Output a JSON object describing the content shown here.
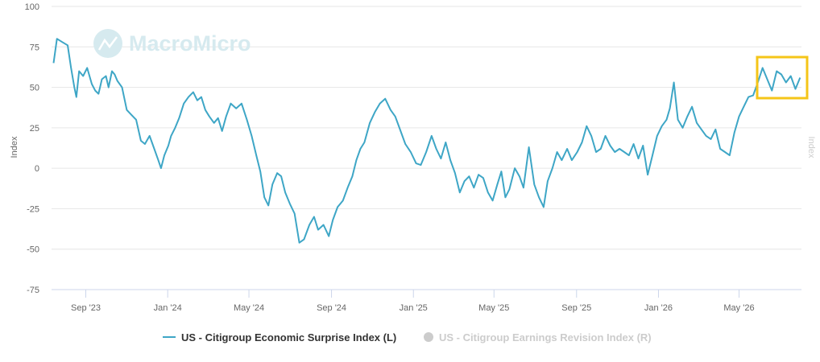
{
  "chart_data": {
    "type": "line",
    "watermark": "MacroMicro",
    "y_axis_left": {
      "label": "Index",
      "ticks": [
        100,
        75,
        50,
        25,
        0,
        -25,
        -50,
        -75
      ],
      "range": [
        -75,
        100
      ]
    },
    "y_axis_right": {
      "label": "Index"
    },
    "x_axis": {
      "ticks": [
        "Sep '23",
        "Jan '24",
        "May '24",
        "Sep '24",
        "Jan '25",
        "May '25",
        "Sep '25",
        "Jan '26",
        "May '26"
      ]
    },
    "grid": true,
    "legend_position": "bottom-center",
    "highlight_box_color": "#f5c518",
    "series": [
      {
        "name": "US - Citigroup Economic Surprise Index (L)",
        "color": "#3ea6c6",
        "visible": true,
        "points": [
          [
            "2023-07-15",
            65
          ],
          [
            "2023-07-20",
            80
          ],
          [
            "2023-07-28",
            78
          ],
          [
            "2023-08-05",
            76
          ],
          [
            "2023-08-10",
            62
          ],
          [
            "2023-08-15",
            50
          ],
          [
            "2023-08-18",
            44
          ],
          [
            "2023-08-22",
            60
          ],
          [
            "2023-08-28",
            57
          ],
          [
            "2023-09-03",
            62
          ],
          [
            "2023-09-10",
            52
          ],
          [
            "2023-09-15",
            48
          ],
          [
            "2023-09-20",
            46
          ],
          [
            "2023-09-25",
            55
          ],
          [
            "2023-10-01",
            57
          ],
          [
            "2023-10-05",
            50
          ],
          [
            "2023-10-10",
            60
          ],
          [
            "2023-10-14",
            58
          ],
          [
            "2023-10-18",
            54
          ],
          [
            "2023-10-25",
            50
          ],
          [
            "2023-11-01",
            36
          ],
          [
            "2023-11-08",
            33
          ],
          [
            "2023-11-15",
            30
          ],
          [
            "2023-11-22",
            17
          ],
          [
            "2023-11-28",
            15
          ],
          [
            "2023-12-05",
            20
          ],
          [
            "2023-12-12",
            12
          ],
          [
            "2023-12-18",
            5
          ],
          [
            "2023-12-22",
            0
          ],
          [
            "2023-12-27",
            8
          ],
          [
            "2024-01-02",
            14
          ],
          [
            "2024-01-06",
            20
          ],
          [
            "2024-01-12",
            25
          ],
          [
            "2024-01-18",
            31
          ],
          [
            "2024-01-25",
            40
          ],
          [
            "2024-02-01",
            44
          ],
          [
            "2024-02-08",
            47
          ],
          [
            "2024-02-14",
            42
          ],
          [
            "2024-02-20",
            44
          ],
          [
            "2024-02-26",
            36
          ],
          [
            "2024-03-03",
            32
          ],
          [
            "2024-03-10",
            28
          ],
          [
            "2024-03-16",
            31
          ],
          [
            "2024-03-22",
            23
          ],
          [
            "2024-03-28",
            32
          ],
          [
            "2024-04-04",
            40
          ],
          [
            "2024-04-12",
            37
          ],
          [
            "2024-04-20",
            40
          ],
          [
            "2024-04-28",
            30
          ],
          [
            "2024-05-05",
            20
          ],
          [
            "2024-05-12",
            8
          ],
          [
            "2024-05-18",
            -2
          ],
          [
            "2024-05-24",
            -18
          ],
          [
            "2024-05-30",
            -23
          ],
          [
            "2024-06-05",
            -10
          ],
          [
            "2024-06-12",
            -3
          ],
          [
            "2024-06-18",
            -5
          ],
          [
            "2024-06-24",
            -15
          ],
          [
            "2024-07-01",
            -22
          ],
          [
            "2024-07-08",
            -28
          ],
          [
            "2024-07-15",
            -46
          ],
          [
            "2024-07-22",
            -44
          ],
          [
            "2024-07-30",
            -35
          ],
          [
            "2024-08-06",
            -30
          ],
          [
            "2024-08-12",
            -38
          ],
          [
            "2024-08-20",
            -35
          ],
          [
            "2024-08-28",
            -42
          ],
          [
            "2024-09-03",
            -32
          ],
          [
            "2024-09-10",
            -24
          ],
          [
            "2024-09-18",
            -20
          ],
          [
            "2024-09-25",
            -12
          ],
          [
            "2024-10-02",
            -5
          ],
          [
            "2024-10-08",
            5
          ],
          [
            "2024-10-14",
            12
          ],
          [
            "2024-10-20",
            16
          ],
          [
            "2024-10-28",
            28
          ],
          [
            "2024-11-05",
            35
          ],
          [
            "2024-11-12",
            40
          ],
          [
            "2024-11-20",
            43
          ],
          [
            "2024-11-28",
            36
          ],
          [
            "2024-12-05",
            32
          ],
          [
            "2024-12-12",
            24
          ],
          [
            "2024-12-20",
            15
          ],
          [
            "2024-12-28",
            10
          ],
          [
            "2025-01-05",
            3
          ],
          [
            "2025-01-12",
            2
          ],
          [
            "2025-01-20",
            10
          ],
          [
            "2025-01-28",
            20
          ],
          [
            "2025-02-04",
            12
          ],
          [
            "2025-02-11",
            6
          ],
          [
            "2025-02-18",
            16
          ],
          [
            "2025-02-25",
            5
          ],
          [
            "2025-03-04",
            -3
          ],
          [
            "2025-03-11",
            -15
          ],
          [
            "2025-03-18",
            -8
          ],
          [
            "2025-03-25",
            -5
          ],
          [
            "2025-04-01",
            -12
          ],
          [
            "2025-04-08",
            -4
          ],
          [
            "2025-04-15",
            -6
          ],
          [
            "2025-04-22",
            -15
          ],
          [
            "2025-04-29",
            -20
          ],
          [
            "2025-05-06",
            -10
          ],
          [
            "2025-05-12",
            -2
          ],
          [
            "2025-05-18",
            -18
          ],
          [
            "2025-05-24",
            -13
          ],
          [
            "2025-06-01",
            0
          ],
          [
            "2025-06-08",
            -5
          ],
          [
            "2025-06-14",
            -12
          ],
          [
            "2025-06-22",
            13
          ],
          [
            "2025-06-30",
            -10
          ],
          [
            "2025-07-07",
            -18
          ],
          [
            "2025-07-14",
            -24
          ],
          [
            "2025-07-20",
            -8
          ],
          [
            "2025-07-27",
            0
          ],
          [
            "2025-08-03",
            10
          ],
          [
            "2025-08-10",
            5
          ],
          [
            "2025-08-18",
            12
          ],
          [
            "2025-08-25",
            5
          ],
          [
            "2025-09-02",
            10
          ],
          [
            "2025-09-09",
            16
          ],
          [
            "2025-09-16",
            26
          ],
          [
            "2025-09-23",
            20
          ],
          [
            "2025-09-30",
            10
          ],
          [
            "2025-10-07",
            12
          ],
          [
            "2025-10-14",
            20
          ],
          [
            "2025-10-21",
            14
          ],
          [
            "2025-10-28",
            10
          ],
          [
            "2025-11-04",
            12
          ],
          [
            "2025-11-11",
            10
          ],
          [
            "2025-11-18",
            8
          ],
          [
            "2025-11-25",
            15
          ],
          [
            "2025-12-02",
            6
          ],
          [
            "2025-12-09",
            14
          ],
          [
            "2025-12-16",
            -4
          ],
          [
            "2025-12-23",
            8
          ],
          [
            "2025-12-30",
            20
          ],
          [
            "2026-01-06",
            26
          ],
          [
            "2026-01-13",
            30
          ],
          [
            "2026-01-18",
            37
          ],
          [
            "2026-01-24",
            53
          ],
          [
            "2026-01-30",
            30
          ],
          [
            "2026-02-06",
            25
          ],
          [
            "2026-02-13",
            32
          ],
          [
            "2026-02-20",
            38
          ],
          [
            "2026-02-27",
            28
          ],
          [
            "2026-03-06",
            24
          ],
          [
            "2026-03-13",
            20
          ],
          [
            "2026-03-20",
            18
          ],
          [
            "2026-03-27",
            24
          ],
          [
            "2026-04-03",
            12
          ],
          [
            "2026-04-10",
            10
          ],
          [
            "2026-04-17",
            8
          ],
          [
            "2026-04-24",
            22
          ],
          [
            "2026-05-01",
            32
          ],
          [
            "2026-05-08",
            38
          ],
          [
            "2026-05-15",
            44
          ],
          [
            "2026-05-22",
            45
          ],
          [
            "2026-05-29",
            53
          ],
          [
            "2026-06-05",
            62
          ],
          [
            "2026-06-12",
            55
          ],
          [
            "2026-06-19",
            48
          ],
          [
            "2026-06-26",
            60
          ],
          [
            "2026-07-03",
            58
          ],
          [
            "2026-07-10",
            53
          ],
          [
            "2026-07-17",
            57
          ],
          [
            "2026-07-24",
            49
          ],
          [
            "2026-07-31",
            56
          ]
        ]
      },
      {
        "name": "US - Citigroup Earnings Revision Index (R)",
        "color": "#cccccc",
        "visible": false,
        "points": []
      }
    ]
  }
}
